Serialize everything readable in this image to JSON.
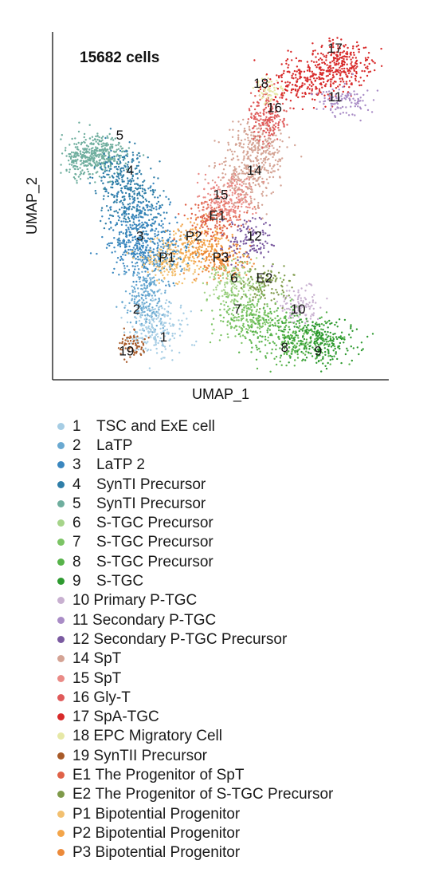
{
  "chart_data": {
    "type": "scatter",
    "title": "15682 cells",
    "xlabel": "UMAP_1",
    "ylabel": "UMAP_2",
    "legend_placement": "bottom",
    "grid": false,
    "clusters": [
      {
        "id": "1",
        "name": "TSC and ExE cell",
        "color": "#a6cde4"
      },
      {
        "id": "2",
        "name": "LaTP",
        "color": "#6aa9d1"
      },
      {
        "id": "3",
        "name": "LaTP 2",
        "color": "#3a87bf"
      },
      {
        "id": "4",
        "name": "SynTI Precursor",
        "color": "#2f7ea8"
      },
      {
        "id": "5",
        "name": "SynTI Precursor",
        "color": "#6fae9e"
      },
      {
        "id": "6",
        "name": "S-TGC Precursor",
        "color": "#a6d48a"
      },
      {
        "id": "7",
        "name": "S-TGC Precursor",
        "color": "#7cc465"
      },
      {
        "id": "8",
        "name": "S-TGC Precursor",
        "color": "#57b34a"
      },
      {
        "id": "9",
        "name": "S-TGC",
        "color": "#2e9a30"
      },
      {
        "id": "10",
        "name": "Primary P-TGC",
        "color": "#c8b0d0"
      },
      {
        "id": "11",
        "name": "Secondary P-TGC",
        "color": "#a98cc6"
      },
      {
        "id": "12",
        "name": "Secondary P-TGC Precursor",
        "color": "#7a5aa0"
      },
      {
        "id": "14",
        "name": "SpT",
        "color": "#d4a394"
      },
      {
        "id": "15",
        "name": "SpT",
        "color": "#ea8a86"
      },
      {
        "id": "16",
        "name": "Gly-T",
        "color": "#e05a5a"
      },
      {
        "id": "17",
        "name": "SpA-TGC",
        "color": "#d82a2a"
      },
      {
        "id": "18",
        "name": "EPC Migratory Cell",
        "color": "#e6e8a6"
      },
      {
        "id": "19",
        "name": "SynTII Precursor",
        "color": "#a85a28"
      },
      {
        "id": "E1",
        "name": "The Progenitor of SpT",
        "color": "#e06248"
      },
      {
        "id": "E2",
        "name": "The Progenitor of S-TGC Precursor",
        "color": "#7f9a4a"
      },
      {
        "id": "P1",
        "name": "Bipotential Progenitor",
        "color": "#f2c070"
      },
      {
        "id": "P2",
        "name": "Bipotential Progenitor",
        "color": "#f3a54a"
      },
      {
        "id": "P3",
        "name": "Bipotential Progenitor",
        "color": "#ec8a3a"
      }
    ],
    "cluster_labels": [
      {
        "text": "17",
        "x": 0.84,
        "y": 0.94
      },
      {
        "text": "18",
        "x": 0.62,
        "y": 0.84
      },
      {
        "text": "11",
        "x": 0.84,
        "y": 0.8
      },
      {
        "text": "16",
        "x": 0.66,
        "y": 0.77
      },
      {
        "text": "5",
        "x": 0.2,
        "y": 0.69
      },
      {
        "text": "4",
        "x": 0.23,
        "y": 0.59
      },
      {
        "text": "14",
        "x": 0.6,
        "y": 0.59
      },
      {
        "text": "15",
        "x": 0.5,
        "y": 0.52
      },
      {
        "text": "E1",
        "x": 0.49,
        "y": 0.46
      },
      {
        "text": "3",
        "x": 0.26,
        "y": 0.4
      },
      {
        "text": "P2",
        "x": 0.42,
        "y": 0.4
      },
      {
        "text": "12",
        "x": 0.6,
        "y": 0.4
      },
      {
        "text": "P1",
        "x": 0.34,
        "y": 0.34
      },
      {
        "text": "P3",
        "x": 0.5,
        "y": 0.34
      },
      {
        "text": "6",
        "x": 0.54,
        "y": 0.28
      },
      {
        "text": "E2",
        "x": 0.63,
        "y": 0.28
      },
      {
        "text": "2",
        "x": 0.25,
        "y": 0.19
      },
      {
        "text": "7",
        "x": 0.55,
        "y": 0.19
      },
      {
        "text": "10",
        "x": 0.73,
        "y": 0.19
      },
      {
        "text": "1",
        "x": 0.33,
        "y": 0.11
      },
      {
        "text": "8",
        "x": 0.69,
        "y": 0.08
      },
      {
        "text": "9",
        "x": 0.79,
        "y": 0.07
      },
      {
        "text": "19",
        "x": 0.22,
        "y": 0.07
      }
    ]
  }
}
